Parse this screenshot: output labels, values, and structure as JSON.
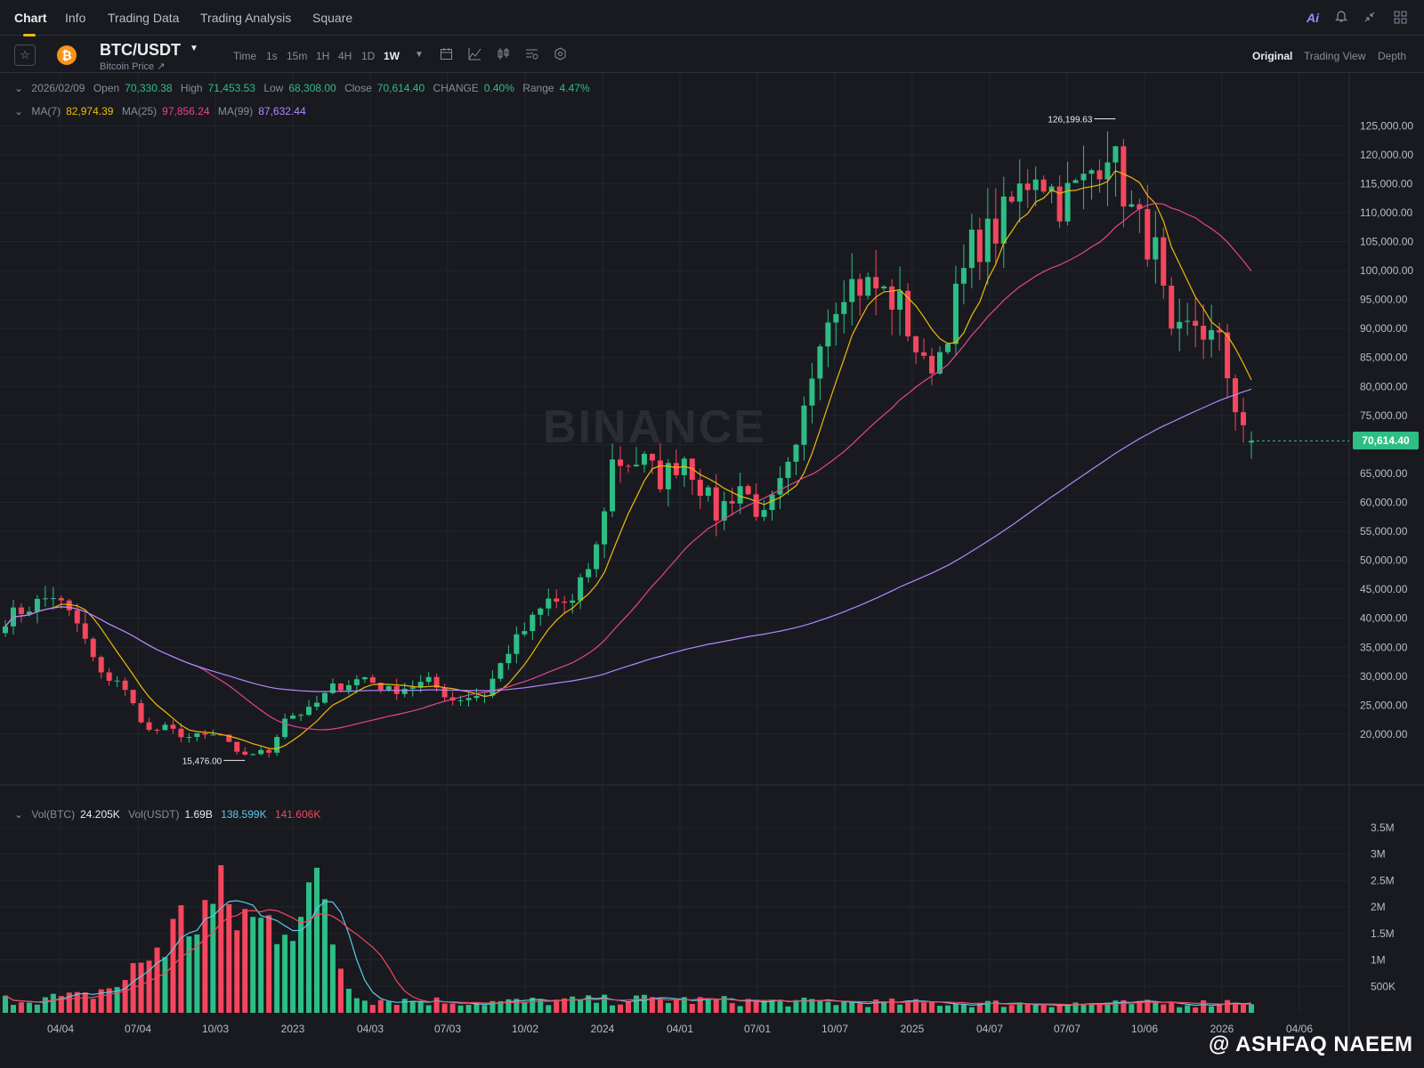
{
  "nav": {
    "tabs": [
      {
        "label": "Chart",
        "active": true
      },
      {
        "label": "Info"
      },
      {
        "label": "Trading Data"
      },
      {
        "label": "Trading Analysis"
      },
      {
        "label": "Square"
      }
    ],
    "ai_label": "Ai",
    "right_icons": [
      "ai-icon",
      "bell-icon",
      "collapse-icon",
      "grid-icon"
    ]
  },
  "symbol": {
    "pair": "BTC/USDT",
    "subtitle": "Bitcoin Price ↗",
    "logo_glyph": "₿",
    "logo_color": "#f7931a"
  },
  "intervals": [
    {
      "label": "Time"
    },
    {
      "label": "1s"
    },
    {
      "label": "15m"
    },
    {
      "label": "1H"
    },
    {
      "label": "4H"
    },
    {
      "label": "1D"
    },
    {
      "label": "1W",
      "active": true
    }
  ],
  "view_tabs": [
    {
      "label": "Original",
      "active": true
    },
    {
      "label": "Trading View"
    },
    {
      "label": "Depth"
    }
  ],
  "ohlc": {
    "date": "2026/02/09",
    "open_label": "Open",
    "open": "70,330.38",
    "high_label": "High",
    "high": "71,453.53",
    "low_label": "Low",
    "low": "68,308.00",
    "close_label": "Close",
    "close": "70,614.40",
    "change_label": "CHANGE",
    "change": "0.40%",
    "range_label": "Range",
    "range": "4.47%"
  },
  "ma": {
    "ma7_label": "MA(7)",
    "ma7": "82,974.39",
    "ma25_label": "MA(25)",
    "ma25": "97,856.24",
    "ma99_label": "MA(99)",
    "ma99": "87,632.44"
  },
  "volume_info": {
    "vol_btc_label": "Vol(BTC)",
    "vol_btc": "24.205K",
    "vol_usdt_label": "Vol(USDT)",
    "vol_usdt": "1.69B",
    "ma5": "138.599K",
    "ma10": "141.606K"
  },
  "last_price": "70,614.40",
  "watermark": "BINANCE",
  "credit": "@ ASHFAQ NAEEM",
  "colors": {
    "up": "#2ebd85",
    "down": "#f6465d",
    "ma7": "#f0b90b",
    "ma25": "#e84393",
    "ma99": "#b388ff",
    "vol_ma5": "#5ec8e5",
    "vol_ma10": "#f6465d"
  },
  "chart_data": {
    "type": "candlestick",
    "interval": "1W",
    "y_ticks": [
      125000,
      120000,
      115000,
      110000,
      105000,
      100000,
      95000,
      90000,
      85000,
      80000,
      75000,
      70000,
      65000,
      60000,
      55000,
      50000,
      45000,
      40000,
      35000,
      30000,
      25000,
      20000
    ],
    "y_tick_labels": [
      "125,000.00",
      "120,000.00",
      "115,000.00",
      "110,000.00",
      "105,000.00",
      "100,000.00",
      "95,000.00",
      "90,000.00",
      "85,000.00",
      "80,000.00",
      "75,000.00",
      "70,000.00",
      "65,000.00",
      "60,000.00",
      "55,000.00",
      "50,000.00",
      "45,000.00",
      "40,000.00",
      "35,000.00",
      "30,000.00",
      "25,000.00",
      "20,000.00"
    ],
    "ylim": [
      12000,
      129500
    ],
    "x_tick_labels": [
      "04/04",
      "07/04",
      "10/03",
      "2023",
      "04/03",
      "07/03",
      "10/02",
      "2024",
      "04/01",
      "07/01",
      "10/07",
      "2025",
      "04/07",
      "07/07",
      "10/06",
      "2026",
      "04/06"
    ],
    "annotations": [
      {
        "label": "126,199.63",
        "value": 126199.63,
        "kind": "max"
      },
      {
        "label": "15,476.00",
        "value": 15476.0,
        "kind": "min"
      }
    ],
    "price_anchors": [
      [
        0,
        40000
      ],
      [
        6,
        44000
      ],
      [
        9,
        39000
      ],
      [
        12,
        30000
      ],
      [
        14,
        29500
      ],
      [
        18,
        20500
      ],
      [
        20,
        21000
      ],
      [
        23,
        19500
      ],
      [
        27,
        19800
      ],
      [
        29,
        16500
      ],
      [
        33,
        17000
      ],
      [
        35,
        23000
      ],
      [
        38,
        24000
      ],
      [
        41,
        28000
      ],
      [
        45,
        29800
      ],
      [
        48,
        27500
      ],
      [
        53,
        29000
      ],
      [
        56,
        26000
      ],
      [
        60,
        27000
      ],
      [
        63,
        34500
      ],
      [
        68,
        43000
      ],
      [
        71,
        42500
      ],
      [
        74,
        52000
      ],
      [
        76,
        67000
      ],
      [
        80,
        67000
      ],
      [
        82,
        64000
      ],
      [
        85,
        68000
      ],
      [
        89,
        58000
      ],
      [
        92,
        63000
      ],
      [
        95,
        57000
      ],
      [
        99,
        68000
      ],
      [
        102,
        90000
      ],
      [
        105,
        98000
      ],
      [
        109,
        97000
      ],
      [
        112,
        94000
      ],
      [
        115,
        83000
      ],
      [
        117,
        86000
      ],
      [
        121,
        104000
      ],
      [
        124,
        107000
      ],
      [
        129,
        118000
      ],
      [
        132,
        112000
      ],
      [
        135,
        115000
      ],
      [
        138,
        122000
      ],
      [
        141,
        110000
      ],
      [
        144,
        103000
      ],
      [
        146,
        87000
      ],
      [
        149,
        91000
      ],
      [
        152,
        87000
      ],
      [
        154,
        77000
      ],
      [
        156,
        70614
      ]
    ],
    "volume_ticks": [
      3500000,
      3000000,
      2500000,
      2000000,
      1500000,
      1000000,
      500000
    ],
    "volume_tick_labels": [
      "3.5M",
      "3M",
      "2.5M",
      "2M",
      "1.5M",
      "1M",
      "500K"
    ],
    "volume_anchors": [
      [
        0,
        250000
      ],
      [
        10,
        300000
      ],
      [
        15,
        600000
      ],
      [
        18,
        1100000
      ],
      [
        21,
        1500000
      ],
      [
        24,
        1900000
      ],
      [
        27,
        2000000
      ],
      [
        30,
        1800000
      ],
      [
        32,
        1600000
      ],
      [
        35,
        2000000
      ],
      [
        38,
        2200000
      ],
      [
        40,
        1900000
      ],
      [
        43,
        500000
      ],
      [
        46,
        250000
      ],
      [
        60,
        200000
      ],
      [
        80,
        250000
      ],
      [
        100,
        200000
      ],
      [
        120,
        180000
      ],
      [
        140,
        170000
      ],
      [
        150,
        180000
      ],
      [
        156,
        240000
      ]
    ]
  }
}
